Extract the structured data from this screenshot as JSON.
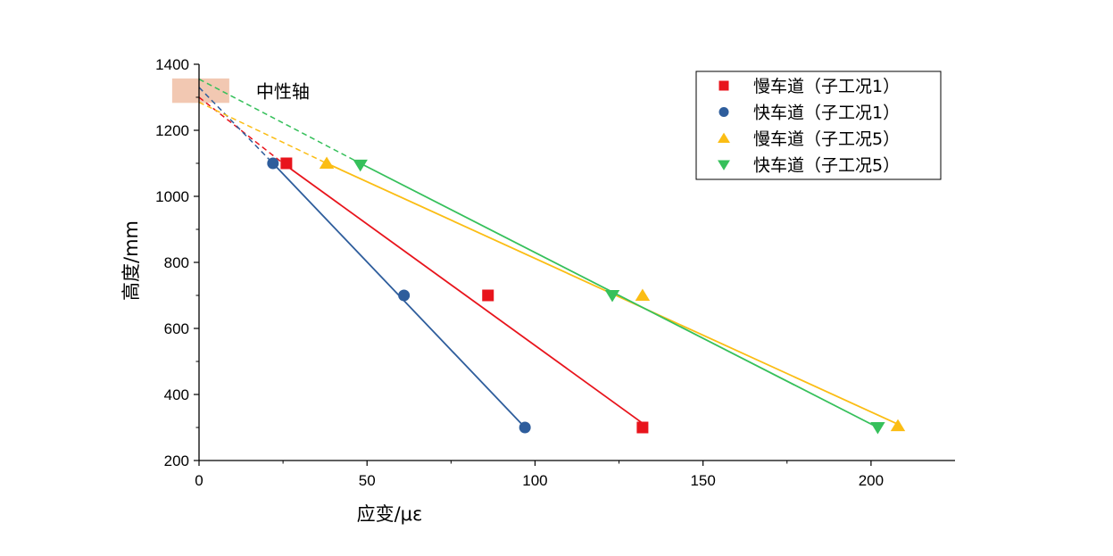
{
  "chart_data": {
    "type": "scatter",
    "xlabel": "应变/με",
    "ylabel": "高度/mm",
    "xlim": [
      0,
      225
    ],
    "ylim": [
      200,
      1400
    ],
    "xticks": [
      0,
      50,
      100,
      150,
      200
    ],
    "yticks": [
      200,
      400,
      600,
      800,
      1000,
      1200,
      1400
    ],
    "legend_position": "top-right",
    "grid": false,
    "annotations": [
      {
        "text": "中性轴",
        "x_range": [
          -8,
          9
        ],
        "y_range": [
          1283,
          1357
        ],
        "color": "#f2c8b2"
      }
    ],
    "series": [
      {
        "name": "慢车道（子工况1）",
        "marker": "square",
        "color": "#e8141c",
        "points": [
          {
            "x": 26,
            "y": 1100
          },
          {
            "x": 86,
            "y": 700
          },
          {
            "x": 132,
            "y": 300
          }
        ],
        "fit": {
          "solid": [
            [
              25,
              1100
            ],
            [
              132,
              313
            ]
          ],
          "dashed": [
            [
              0,
              1300
            ],
            [
              25,
              1100
            ]
          ]
        }
      },
      {
        "name": "快车道（子工况1）",
        "marker": "circle",
        "color": "#2e5d9c",
        "points": [
          {
            "x": 22,
            "y": 1100
          },
          {
            "x": 61,
            "y": 700
          },
          {
            "x": 97,
            "y": 300
          }
        ],
        "fit": {
          "solid": [
            [
              22,
              1100
            ],
            [
              97,
              300
            ]
          ],
          "dashed": [
            [
              0,
              1330
            ],
            [
              22,
              1100
            ]
          ]
        }
      },
      {
        "name": "慢车道（子工况5）",
        "marker": "triangle-up",
        "color": "#fbbd14",
        "points": [
          {
            "x": 38,
            "y": 1100
          },
          {
            "x": 132,
            "y": 700
          },
          {
            "x": 208,
            "y": 305
          }
        ],
        "fit": {
          "solid": [
            [
              38,
              1100
            ],
            [
              208,
              310
            ]
          ],
          "dashed": [
            [
              0,
              1285
            ],
            [
              38,
              1100
            ]
          ]
        }
      },
      {
        "name": "快车道（子工况5）",
        "marker": "triangle-down",
        "color": "#36c05b",
        "points": [
          {
            "x": 48,
            "y": 1095
          },
          {
            "x": 123,
            "y": 700
          },
          {
            "x": 202,
            "y": 300
          }
        ],
        "fit": {
          "solid": [
            [
              48,
              1100
            ],
            [
              202,
              300
            ]
          ],
          "dashed": [
            [
              0,
              1355
            ],
            [
              48,
              1100
            ]
          ]
        }
      }
    ]
  }
}
